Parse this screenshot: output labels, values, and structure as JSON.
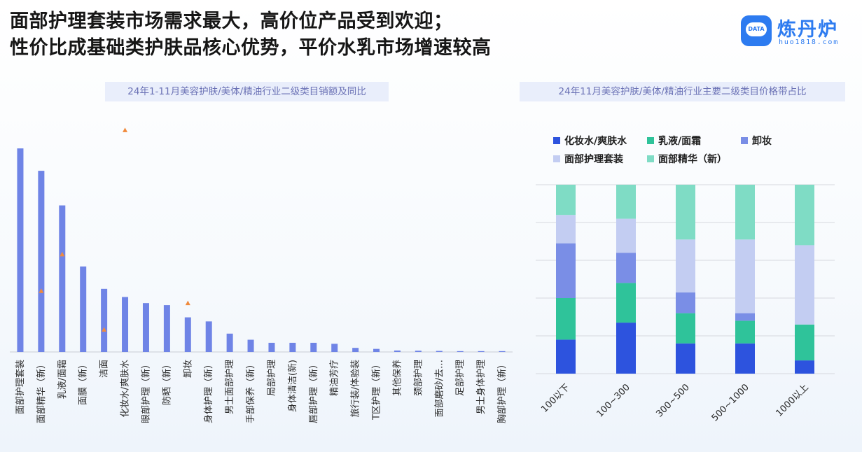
{
  "header": {
    "line1": "面部护理套装市场需求最大，高价位产品受到欢迎；",
    "line2": "性价比成基础类护肤品核心优势，平价水乳市场增速较高"
  },
  "logo": {
    "name": "炼丹炉",
    "url": "huo1818.com",
    "badge_text": "DATA",
    "icon": "cauldron-cloud-icon",
    "color": "#2d7bf0"
  },
  "colors": {
    "bar": "#6f84e6",
    "marker": "#f08a3c",
    "title_bg": "#e9eefb",
    "title_text": "#6a71b5"
  },
  "chart_data": [
    {
      "type": "bar",
      "title": "24年1-11月美容护肤/美体/精油行业二级类目销额及同比",
      "categories": [
        "面部护理套装",
        "面部精华（新）",
        "乳液/面霜",
        "面膜（新）",
        "洁面",
        "化妆水/爽肤水",
        "眼部护理（新）",
        "防晒（新）",
        "卸妆",
        "身体护理（新）",
        "男士面部护理",
        "手部保养（新）",
        "局部护理",
        "身体清洁(新)",
        "唇部护理（新）",
        "精油芳疗",
        "旅行装/体验装",
        "T区护理（新）",
        "其他保养",
        "颈部护理",
        "面部磨砂/去…",
        "足部护理",
        "男士身体护理",
        "胸部护理（新）"
      ],
      "series": [
        {
          "values": [
            100,
            89,
            72,
            42,
            31,
            27,
            24,
            23,
            17,
            15,
            9,
            6,
            4.5,
            4.5,
            4.5,
            4,
            2,
            1.5,
            0.7,
            0.6,
            0.5,
            0.4,
            0.4,
            0.4
          ]
        }
      ],
      "growth_markers": [
        {
          "category": "面部精华（新）",
          "value": 30
        },
        {
          "category": "乳液/面霜",
          "value": 48
        },
        {
          "category": "洁面",
          "value": 11
        },
        {
          "category": "化妆水/爽肤水",
          "value": 109
        },
        {
          "category": "卸妆",
          "value": 24
        }
      ],
      "ylim": [
        0,
        110
      ],
      "grid": false
    },
    {
      "type": "bar",
      "stacked": true,
      "percent": true,
      "title": "24年11月美容护肤/美体/精油行业主要二级类目价格带占比",
      "categories": [
        "100以下",
        "100~300",
        "300~500",
        "500~1000",
        "1000以上"
      ],
      "series": [
        {
          "name": "化妆水/爽肤水",
          "color": "#2d53de",
          "values": [
            18,
            27,
            16,
            16,
            7
          ]
        },
        {
          "name": "乳液/面霜",
          "color": "#2fc39a",
          "values": [
            22,
            21,
            16,
            12,
            19
          ]
        },
        {
          "name": "卸妆",
          "color": "#7a8ee6",
          "values": [
            29,
            16,
            11,
            4,
            0
          ]
        },
        {
          "name": "面部护理套装",
          "color": "#c3cdf2",
          "values": [
            15,
            18,
            28,
            39,
            42
          ]
        },
        {
          "name": "面部精华（新）",
          "color": "#7fdcc5",
          "values": [
            16,
            18,
            29,
            29,
            32
          ]
        }
      ],
      "ylim": [
        0,
        100
      ],
      "grid": true,
      "legend": "top"
    }
  ]
}
